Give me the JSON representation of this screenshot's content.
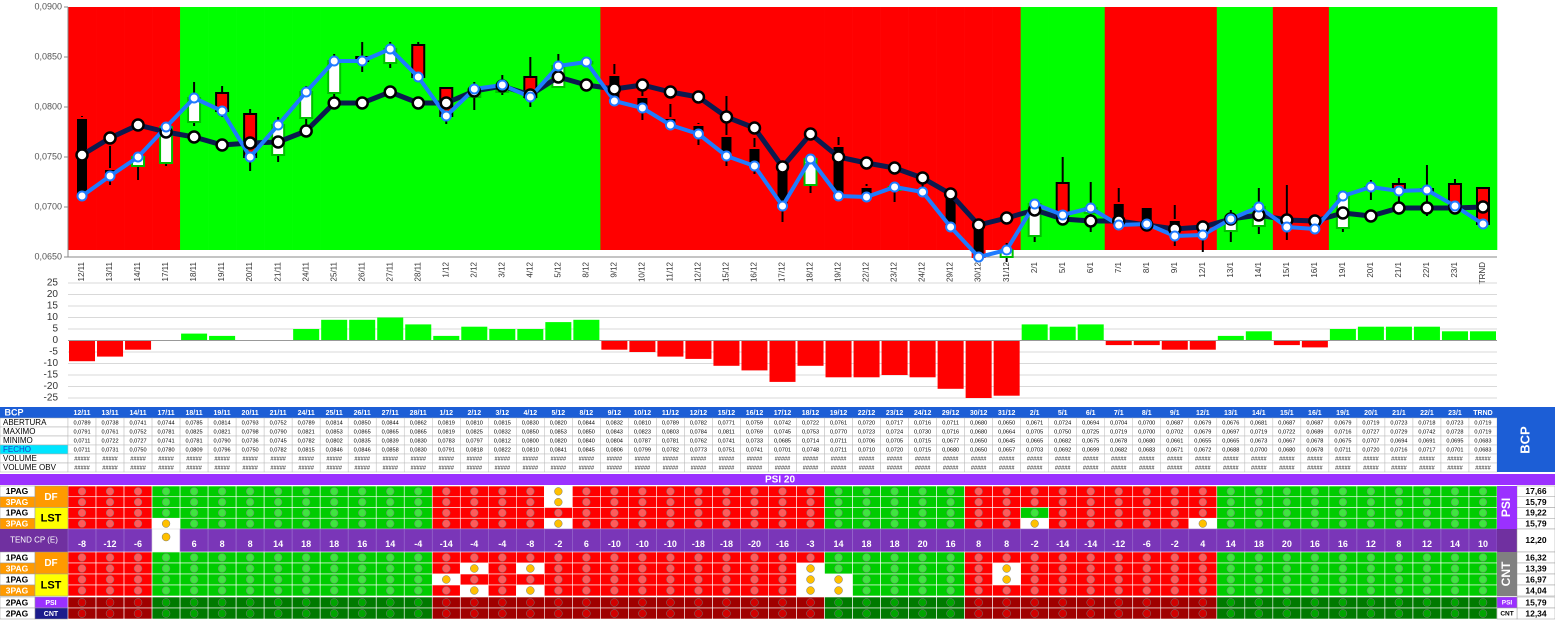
{
  "chart_data": [
    {
      "type": "candlestick",
      "categories": [
        "12/11",
        "13/11",
        "14/11",
        "17/11",
        "18/11",
        "19/11",
        "20/11",
        "21/11",
        "24/11",
        "25/11",
        "26/11",
        "27/11",
        "28/11",
        "1/12",
        "2/12",
        "3/12",
        "4/12",
        "5/12",
        "8/12",
        "9/12",
        "10/12",
        "11/12",
        "12/12",
        "15/12",
        "16/12",
        "17/12",
        "18/12",
        "19/12",
        "22/12",
        "23/12",
        "24/12",
        "29/12",
        "30/12",
        "31/12",
        "2/1",
        "5/1",
        "6/1",
        "7/1",
        "8/1",
        "9/1",
        "12/1",
        "13/1",
        "14/1",
        "15/1",
        "16/1",
        "19/1",
        "20/1",
        "21/1",
        "22/1",
        "23/1",
        "TRND"
      ],
      "background": "rrrrgggggggggggggggrrrrrrrrrrrrrrrgggrrrrggrrgggggg",
      "background_colors": {
        "r": "#ff0000",
        "g": "#00ff00"
      },
      "series": [
        {
          "name": "ABERTURA",
          "values": [
            0.0789,
            0.0738,
            0.0741,
            0.0744,
            0.0785,
            0.0814,
            0.0793,
            0.0752,
            0.0789,
            0.0814,
            0.085,
            0.0844,
            0.0862,
            0.0819,
            0.081,
            0.0815,
            0.083,
            0.082,
            0.0844,
            0.0832,
            0.081,
            0.0789,
            0.0782,
            0.0771,
            0.0759,
            0.0742,
            0.0722,
            0.0761,
            0.072,
            0.0717,
            0.0716,
            0.0711,
            0.068,
            0.065,
            0.0671,
            0.0724,
            0.0694,
            0.0704,
            0.07,
            0.0687,
            0.0679,
            0.0676,
            0.0681,
            0.0687,
            0.0687,
            0.0679,
            0.0719,
            0.0723,
            0.0718,
            0.0723,
            0.0719
          ],
          "value_labels": [
            "0,0789",
            "0,0738",
            "0,0741",
            "0,0744",
            "0,0785",
            "0,0814",
            "0,0793",
            "0,0752",
            "0,0789",
            "0,0814",
            "0,0850",
            "0,0844",
            "0,0862",
            "0,0819",
            "0,0810",
            "0,0815",
            "0,0830",
            "0,0820",
            "0,0844",
            "0,0832",
            "0,0810",
            "0,0789",
            "0,0782",
            "0,0771",
            "0,0759",
            "0,0742",
            "0,0722",
            "0,0761",
            "0,0720",
            "0,0717",
            "0,0716",
            "0,0711",
            "0,0680",
            "0,0650",
            "0,0671",
            "0,0724",
            "0,0694",
            "0,0704",
            "0,0700",
            "0,0687",
            "0,0679",
            "0,0676",
            "0,0681",
            "0,0687",
            "0,0687",
            "0,0679",
            "0,0719",
            "0,0723",
            "0,0718",
            "0,0723",
            "0,0719"
          ]
        },
        {
          "name": "MAXIMO",
          "values": [
            0.0791,
            0.0761,
            0.0752,
            0.0781,
            0.0825,
            0.0821,
            0.0798,
            0.079,
            0.0821,
            0.0853,
            0.0865,
            0.0865,
            0.0865,
            0.0819,
            0.0825,
            0.0832,
            0.085,
            0.0853,
            0.085,
            0.0843,
            0.0823,
            0.0803,
            0.0784,
            0.0811,
            0.0769,
            0.0745,
            0.0753,
            0.077,
            0.0723,
            0.0724,
            0.073,
            0.0716,
            0.068,
            0.0664,
            0.0705,
            0.075,
            0.0725,
            0.0719,
            0.07,
            0.0702,
            0.0679,
            0.0697,
            0.0719,
            0.0722,
            0.0689,
            0.0716,
            0.0727,
            0.0729,
            0.0742,
            0.0728,
            0.0719
          ],
          "value_labels": [
            "0,0791",
            "0,0761",
            "0,0752",
            "0,0781",
            "0,0825",
            "0,0821",
            "0,0798",
            "0,0790",
            "0,0821",
            "0,0853",
            "0,0865",
            "0,0865",
            "0,0865",
            "0,0819",
            "0,0825",
            "0,0832",
            "0,0850",
            "0,0853",
            "0,0850",
            "0,0843",
            "0,0823",
            "0,0803",
            "0,0784",
            "0,0811",
            "0,0769",
            "0,0745",
            "0,0753",
            "0,0770",
            "0,0723",
            "0,0724",
            "0,0730",
            "0,0716",
            "0,0680",
            "0,0664",
            "0,0705",
            "0,0750",
            "0,0725",
            "0,0719",
            "0,0700",
            "0,0702",
            "0,0679",
            "0,0697",
            "0,0719",
            "0,0722",
            "0,0689",
            "0,0716",
            "0,0727",
            "0,0729",
            "0,0742",
            "0,0728",
            "0,0719"
          ]
        },
        {
          "name": "MINIMO",
          "values": [
            0.0711,
            0.0722,
            0.0727,
            0.0741,
            0.0781,
            0.079,
            0.0736,
            0.0745,
            0.0782,
            0.0802,
            0.0835,
            0.0839,
            0.083,
            0.0783,
            0.0797,
            0.0812,
            0.08,
            0.082,
            0.084,
            0.0804,
            0.0787,
            0.0781,
            0.0762,
            0.0741,
            0.0733,
            0.0685,
            0.0714,
            0.0711,
            0.0706,
            0.0705,
            0.0715,
            0.0677,
            0.065,
            0.0645,
            0.0665,
            0.0682,
            0.0675,
            0.0678,
            0.068,
            0.0661,
            0.0655,
            0.0665,
            0.0673,
            0.0667,
            0.0678,
            0.0675,
            0.0707,
            0.0694,
            0.0691,
            0.0695,
            0.0683
          ],
          "value_labels": [
            "0,0711",
            "0,0722",
            "0,0727",
            "0,0741",
            "0,0781",
            "0,0790",
            "0,0736",
            "0,0745",
            "0,0782",
            "0,0802",
            "0,0835",
            "0,0839",
            "0,0830",
            "0,0783",
            "0,0797",
            "0,0812",
            "0,0800",
            "0,0820",
            "0,0840",
            "0,0804",
            "0,0787",
            "0,0781",
            "0,0762",
            "0,0741",
            "0,0733",
            "0,0685",
            "0,0714",
            "0,0711",
            "0,0706",
            "0,0705",
            "0,0715",
            "0,0677",
            "0,0650",
            "0,0645",
            "0,0665",
            "0,0682",
            "0,0675",
            "0,0678",
            "0,0680",
            "0,0661",
            "0,0655",
            "0,0665",
            "0,0673",
            "0,0667",
            "0,0678",
            "0,0675",
            "0,0707",
            "0,0694",
            "0,0691",
            "0,0695",
            "0,0683"
          ]
        },
        {
          "name": "FECHO",
          "color": "#1f7bff",
          "values": [
            0.0711,
            0.0731,
            0.075,
            0.078,
            0.0809,
            0.0796,
            0.075,
            0.0782,
            0.0815,
            0.0846,
            0.0846,
            0.0858,
            0.083,
            0.0791,
            0.0818,
            0.0822,
            0.081,
            0.0841,
            0.0845,
            0.0806,
            0.0799,
            0.0782,
            0.0773,
            0.0751,
            0.0741,
            0.0701,
            0.0748,
            0.0711,
            0.071,
            0.072,
            0.0715,
            0.068,
            0.065,
            0.0657,
            0.0703,
            0.0692,
            0.0699,
            0.0682,
            0.0683,
            0.0671,
            0.0672,
            0.0688,
            0.07,
            0.068,
            0.0678,
            0.0711,
            0.072,
            0.0716,
            0.0717,
            0.0701,
            0.0683
          ],
          "value_labels": [
            "0,0711",
            "0,0731",
            "0,0750",
            "0,0780",
            "0,0809",
            "0,0796",
            "0,0750",
            "0,0782",
            "0,0815",
            "0,0846",
            "0,0846",
            "0,0858",
            "0,0830",
            "0,0791",
            "0,0818",
            "0,0822",
            "0,0810",
            "0,0841",
            "0,0845",
            "0,0806",
            "0,0799",
            "0,0782",
            "0,0773",
            "0,0751",
            "0,0741",
            "0,0701",
            "0,0748",
            "0,0711",
            "0,0710",
            "0,0720",
            "0,0715",
            "0,0680",
            "0,0650",
            "0,0657",
            "0,0703",
            "0,0692",
            "0,0699",
            "0,0682",
            "0,0683",
            "0,0671",
            "0,0672",
            "0,0688",
            "0,0700",
            "0,0680",
            "0,0678",
            "0,0711",
            "0,0720",
            "0,0716",
            "0,0717",
            "0,0701",
            "0,0683"
          ]
        },
        {
          "color": "#0c1a4e",
          "values": [
            0.0752,
            0.0769,
            0.0782,
            0.0775,
            0.077,
            0.0762,
            0.0764,
            0.0765,
            0.0776,
            0.0804,
            0.0804,
            0.0815,
            0.0804,
            0.0804,
            0.0816,
            0.0821,
            0.0812,
            0.083,
            0.0822,
            0.0818,
            0.0822,
            0.0815,
            0.081,
            0.079,
            0.0779,
            0.074,
            0.0773,
            0.075,
            0.0744,
            0.0739,
            0.0729,
            0.0713,
            0.0682,
            0.0689,
            0.0697,
            0.0688,
            0.0686,
            0.0686,
            0.0682,
            0.0678,
            0.068,
            0.0688,
            0.0692,
            0.0687,
            0.0686,
            0.0694,
            0.0691,
            0.0699,
            0.0699,
            0.0699,
            0.07
          ]
        }
      ],
      "ylim": [
        0.065,
        0.09
      ],
      "yticks": [
        {
          "value": 0.065,
          "label": "0,0650"
        },
        {
          "value": 0.07,
          "label": "0,0700"
        },
        {
          "value": 0.075,
          "label": "0,0750"
        },
        {
          "value": 0.08,
          "label": "0,0800"
        },
        {
          "value": 0.085,
          "label": "0,0850"
        },
        {
          "value": 0.09,
          "label": "0,0900"
        }
      ]
    },
    {
      "type": "bar",
      "values": [
        -9,
        -7,
        -4,
        0,
        3,
        2,
        0,
        0,
        5,
        9,
        9,
        10,
        7,
        2,
        6,
        5,
        5,
        8,
        9,
        -4,
        -5,
        -7,
        -8,
        -11,
        -13,
        -18,
        -11,
        -16,
        -16,
        -15,
        -16,
        -21,
        -25,
        -24,
        7,
        6,
        7,
        -2,
        -2,
        -4,
        -4,
        2,
        4,
        -2,
        -3,
        5,
        6,
        6,
        6,
        4,
        4
      ],
      "up_color": "#00ff00",
      "down_color": "#ff0000",
      "ylim": [
        -25,
        25
      ],
      "yticks": [
        -25,
        -20,
        -15,
        -10,
        -5,
        0,
        5,
        10,
        15,
        20,
        25
      ],
      "grid": true
    }
  ],
  "table": {
    "title": "BCP",
    "side_label": "BCP",
    "rows": [
      {
        "label": "VOLUME",
        "cells": [
          "#####",
          "#####",
          "#####",
          "#####",
          "#####",
          "#####",
          "#####",
          "#####",
          "#####",
          "#####",
          "#####",
          "#####",
          "#####",
          "#####",
          "#####",
          "#####",
          "#####",
          "#####",
          "#####",
          "#####",
          "#####",
          "#####",
          "#####",
          "#####",
          "#####",
          "#####",
          "#####",
          "#####",
          "#####",
          "#####",
          "#####",
          "#####",
          "#####",
          "#####",
          "#####",
          "#####",
          "#####",
          "#####",
          "#####",
          "#####",
          "#####",
          "#####",
          "#####",
          "#####",
          "#####",
          "#####",
          "#####",
          "#####",
          "#####",
          "#####",
          "#####"
        ]
      },
      {
        "label": "VOLUME OBV",
        "cells": [
          "#####",
          "#####",
          "#####",
          "#####",
          "#####",
          "#####",
          "#####",
          "#####",
          "#####",
          "#####",
          "#####",
          "#####",
          "#####",
          "#####",
          "#####",
          "#####",
          "#####",
          "#####",
          "#####",
          "#####",
          "#####",
          "#####",
          "#####",
          "#####",
          "#####",
          "#####",
          "#####",
          "#####",
          "#####",
          "#####",
          "#####",
          "#####",
          "#####",
          "#####",
          "#####",
          "#####",
          "#####",
          "#####",
          "#####",
          "#####",
          "#####",
          "#####",
          "#####",
          "#####",
          "#####",
          "#####",
          "#####",
          "#####",
          "#####",
          "#####",
          "#####"
        ]
      }
    ]
  },
  "signals": {
    "title": "PSI 20",
    "cell_colors": {
      "r": "#ff0000",
      "g": "#00cc00",
      "w": "#ffffff",
      "R": "#a00000",
      "G": "#007a00"
    },
    "dot_colors": {
      "r": "#ff5a5a",
      "g": "#3ee63e",
      "w": "#ffc000",
      "R": "#d00000",
      "G": "#00a400"
    },
    "groups": [
      {
        "side_label": "PSI",
        "blocks": [
          {
            "kind": "DF",
            "rows": [
              {
                "page": "1PAG",
                "pattern": "rrrggggggggggrrrrwrrrrrrrrrgggggrrrrrrrrrgggggggggg",
                "score": "17,66"
              },
              {
                "page": "3PAG",
                "pattern": "rrrggggggggggrrrrwrrrrrrrrrgggggrrrrrrrrrgggggggggg",
                "score": "15,79"
              }
            ]
          },
          {
            "kind": "LST",
            "rows": [
              {
                "page": "1PAG",
                "pattern": "rrrggggggggggrrrrrrrrrrrrrrgggggrrgrrrrrrgggggggggg",
                "score": "19,22"
              },
              {
                "page": "3PAG",
                "pattern": "rrrwgggggggggrrrrwrrrrrrrrrgggggrrwrrrrrwgggggggggg",
                "score": "15,79"
              }
            ]
          }
        ]
      },
      {
        "side_label": "CNT",
        "blocks": [
          {
            "kind": "DF",
            "rows": [
              {
                "page": "1PAG",
                "pattern": "rrrggggggggggrrrrrrrrrrrrrrgggggrrrrrrrrrgggggggggg",
                "score": "16,32"
              },
              {
                "page": "3PAG",
                "pattern": "rrrggggggggggrwrwrrrrrrrrrwgggggrwrrrrrrrgggggggggg",
                "score": "13,39"
              }
            ]
          },
          {
            "kind": "LST",
            "rows": [
              {
                "page": "1PAG",
                "pattern": "rrrggggggggggwrrrrrrrrrrrrwwggggrwrrrrrrrgggggggggg",
                "score": "16,97"
              },
              {
                "page": "3PAG",
                "pattern": "rrrggggggggggrwrwrrrrrrrrrwwggggrrrrrrrrrgggggggggg",
                "score": "14,04"
              }
            ]
          }
        ]
      }
    ],
    "trend": {
      "label": "TEND CP (E)",
      "values": [
        -8,
        -12,
        -6,
        null,
        6,
        8,
        8,
        14,
        18,
        18,
        16,
        14,
        -4,
        -14,
        -4,
        -4,
        -8,
        -2,
        6,
        -10,
        -10,
        -10,
        -18,
        -18,
        -20,
        -16,
        -3,
        14,
        18,
        18,
        20,
        16,
        8,
        8,
        -2,
        -14,
        -14,
        -12,
        -6,
        -2,
        4,
        14,
        18,
        20,
        16,
        16,
        12,
        8,
        12,
        14,
        10
      ],
      "score": "12,20"
    },
    "bottom": [
      {
        "page": "2PAG",
        "kind": "PSI",
        "pattern": "RRRGGGGGGGGGGRRRRRRRRRRRRRRGGGGGRRRRRRRRRGGGGGGGGGG",
        "score": "15,79"
      },
      {
        "page": "2PAG",
        "kind": "CNT",
        "pattern": "RRRGGGGGGGGGGRRRRRRRRRRRRRRGGGGGRRRRRRRRRGGGGGGGGGG",
        "score": "12,34"
      }
    ]
  }
}
